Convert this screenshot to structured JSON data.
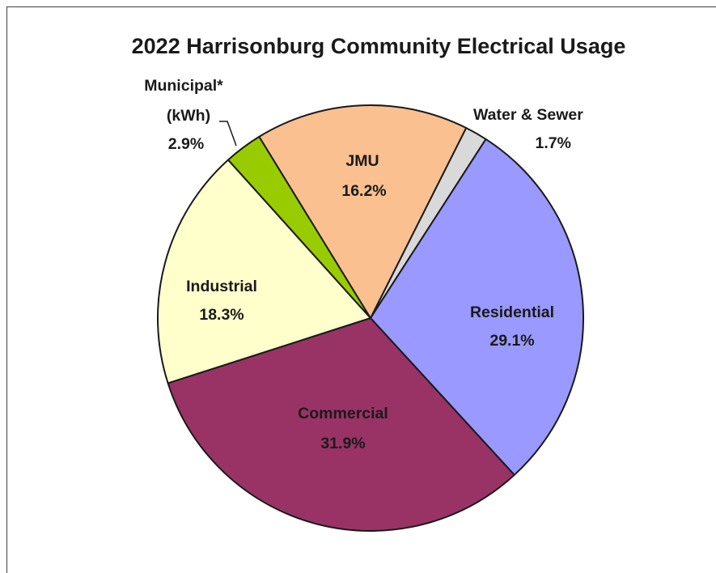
{
  "chart_data": {
    "type": "pie",
    "title": "2022 Harrisonburg Community Electrical Usage",
    "slices": [
      {
        "name": "Water & Sewer",
        "value": 1.7,
        "label": "1.7%",
        "color": "#D9D9D9"
      },
      {
        "name": "Residential",
        "value": 29.1,
        "label": "29.1%",
        "color": "#9999FF"
      },
      {
        "name": "Commercial",
        "value": 31.9,
        "label": "31.9%",
        "color": "#993366"
      },
      {
        "name": "Industrial",
        "value": 18.3,
        "label": "18.3%",
        "color": "#FFFFCC"
      },
      {
        "name": "Municipal* (kWh)",
        "value": 2.9,
        "label": "2.9%",
        "color": "#99CC00"
      },
      {
        "name": "JMU",
        "value": 16.2,
        "label": "16.2%",
        "color": "#FAC090"
      }
    ],
    "labels": {
      "water": {
        "line1": "Water & Sewer",
        "line2": "1.7%"
      },
      "residential": {
        "line1": "Residential",
        "line2": "29.1%"
      },
      "commercial": {
        "line1": "Commercial",
        "line2": "31.9%"
      },
      "industrial": {
        "line1": "Industrial",
        "line2": "18.3%"
      },
      "municipal": {
        "line1": "Municipal*",
        "line2": "(kWh)",
        "line3": "2.9%"
      },
      "jmu": {
        "line1": "JMU",
        "line2": "16.2%"
      }
    }
  }
}
